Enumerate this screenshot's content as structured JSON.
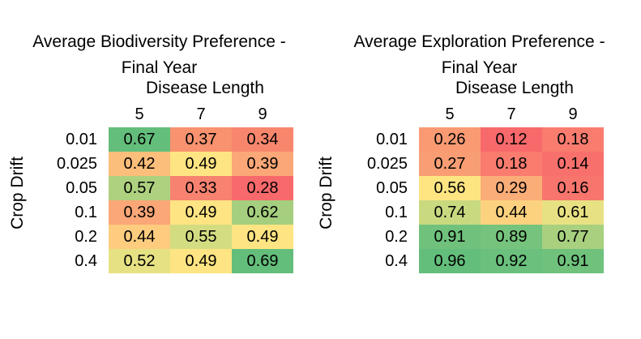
{
  "chart_data": [
    {
      "type": "heatmap",
      "title": "Average Biodiversity Preference -\nFinal Year",
      "xlabel": "Disease Length",
      "ylabel": "Crop Drift",
      "x": [
        "5",
        "7",
        "9"
      ],
      "y": [
        "0.01",
        "0.025",
        "0.05",
        "0.1",
        "0.2",
        "0.4"
      ],
      "values": [
        [
          0.67,
          0.37,
          0.34
        ],
        [
          0.42,
          0.49,
          0.39
        ],
        [
          0.57,
          0.33,
          0.28
        ],
        [
          0.39,
          0.49,
          0.62
        ],
        [
          0.44,
          0.55,
          0.49
        ],
        [
          0.52,
          0.49,
          0.69
        ]
      ],
      "colors": [
        [
          "#63be7b",
          "#f8926f",
          "#f8866d"
        ],
        [
          "#fbbe7b",
          "#fee482",
          "#fba777"
        ],
        [
          "#aed17f",
          "#f88270",
          "#f8696b"
        ],
        [
          "#fba777",
          "#fee482",
          "#a5cf7e"
        ],
        [
          "#fdcc7e",
          "#d3dc81",
          "#fee482"
        ],
        [
          "#e6e183",
          "#fee482",
          "#63be7b"
        ]
      ]
    },
    {
      "type": "heatmap",
      "title": "Average Exploration Preference -\nFinal Year",
      "xlabel": "Disease Length",
      "ylabel": "Crop Drift",
      "x": [
        "5",
        "7",
        "9"
      ],
      "y": [
        "0.01",
        "0.025",
        "0.05",
        "0.1",
        "0.2",
        "0.4"
      ],
      "values": [
        [
          0.26,
          0.12,
          0.18
        ],
        [
          0.27,
          0.18,
          0.14
        ],
        [
          0.56,
          0.29,
          0.16
        ],
        [
          0.74,
          0.44,
          0.61
        ],
        [
          0.91,
          0.89,
          0.77
        ],
        [
          0.96,
          0.92,
          0.91
        ]
      ],
      "colors": [
        [
          "#f99a73",
          "#f8696b",
          "#f97c6f"
        ],
        [
          "#f99e74",
          "#f97c6f",
          "#f8706c"
        ],
        [
          "#fee582",
          "#fbad78",
          "#f8756d"
        ],
        [
          "#c8d980",
          "#fdd27f",
          "#e8e183"
        ],
        [
          "#6fc17c",
          "#75c37c",
          "#a8d07f"
        ],
        [
          "#63be7b",
          "#6ac07c",
          "#6fc17c"
        ]
      ]
    }
  ]
}
